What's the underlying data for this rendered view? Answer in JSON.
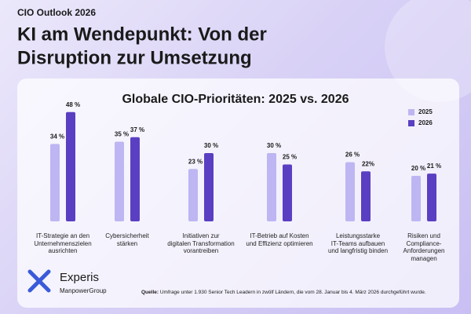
{
  "header": {
    "kicker": "CIO Outlook 2026",
    "title_lines": [
      "KI am Wendepunkt: Von der",
      "Disruption zur Umsetzung"
    ]
  },
  "chart_data": {
    "type": "bar",
    "title": "Globale CIO-Prioritäten: 2025 vs. 2026",
    "categories": [
      "IT-Strategie an den\nUnternehmenszielen\nausrichten",
      "Cybersicherheit\nstärken",
      "Initiativen zur\ndigitalen Transformation\nvorantreiben",
      "IT-Betrieb auf Kosten\nund Effizienz optimieren",
      "Leistungsstarke\nIT-Teams aufbauen\nund langfristig binden",
      "Risiken und\nCompliance-\nAnforderungen\nmanagen"
    ],
    "series": [
      {
        "name": "2025",
        "color": "#bdb6f2",
        "values": [
          34,
          35,
          23,
          30,
          26,
          20
        ],
        "value_labels": [
          "34 %",
          "35 %",
          "23 %",
          "30 %",
          "26 %",
          "20 %"
        ]
      },
      {
        "name": "2026",
        "color": "#5b3fc2",
        "values": [
          48,
          37,
          30,
          25,
          22,
          21
        ],
        "value_labels": [
          "48 %",
          "37 %",
          "30 %",
          "25 %",
          "22%",
          "21 %"
        ]
      }
    ],
    "legend": "upper right"
  },
  "footer": {
    "brand": "Experis",
    "brand_sub": "ManpowerGroup",
    "source_label": "Quelle:",
    "source_text": "Umfrage unter 1.930 Senior Tech Leadern in zwölf Ländern, die vom 28. Januar bis 4. März 2026 durchgeführt wurde."
  }
}
